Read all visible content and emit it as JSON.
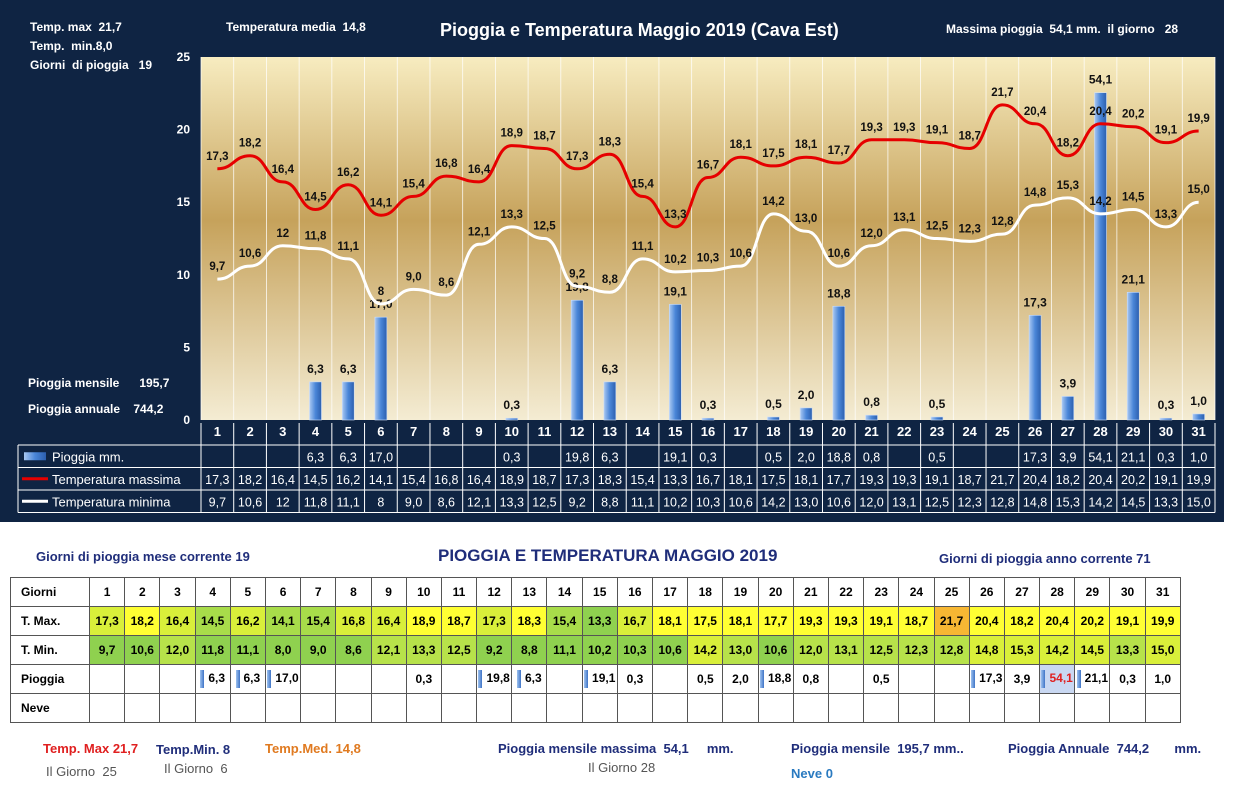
{
  "header": {
    "title": "Pioggia e Temperatura Maggio 2019 (Cava Est)",
    "temp_max_label": "Temp. max  21,7",
    "temp_min_label": "Temp.  min.8,0",
    "rain_days_label": "Giorni  di pioggia   19",
    "temp_media_label": "Temperatura media  14,8",
    "max_rain_label": "Massima pioggia  54,1 mm.  il giorno   28",
    "monthly_rain_label": "Pioggia mensile      195,7",
    "annual_rain_label": "Pioggia annuale    744,2"
  },
  "legend": {
    "rain": "Pioggia mm.",
    "tmax": "Temperatura massima",
    "tmin": "Temperatura minima"
  },
  "colors": {
    "panel": "#0f2443",
    "tmax_line": "#e60000",
    "tmin_line": "#ffffff",
    "bar": "#4a86d8"
  },
  "chart_data": {
    "type": "bar+line",
    "categories": [
      "1",
      "2",
      "3",
      "4",
      "5",
      "6",
      "7",
      "8",
      "9",
      "10",
      "11",
      "12",
      "13",
      "14",
      "15",
      "16",
      "17",
      "18",
      "19",
      "20",
      "21",
      "22",
      "23",
      "24",
      "25",
      "26",
      "27",
      "28",
      "29",
      "30",
      "31"
    ],
    "left_axis": {
      "ticks": [
        "0",
        "5",
        "10",
        "15",
        "20",
        "25"
      ],
      "ylim": [
        0,
        25
      ]
    },
    "right_axis": {
      "ticks": [
        "0",
        "10",
        "20",
        "30",
        "40",
        "50",
        "60"
      ],
      "ylim": [
        0,
        60
      ]
    },
    "series": [
      {
        "name": "Pioggia mm.",
        "kind": "bar",
        "axis": "right",
        "values": [
          null,
          null,
          null,
          6.3,
          6.3,
          17.0,
          null,
          null,
          null,
          0.3,
          null,
          19.8,
          6.3,
          null,
          19.1,
          0.3,
          null,
          0.5,
          2.0,
          18.8,
          0.8,
          null,
          0.5,
          null,
          null,
          17.3,
          3.9,
          54.1,
          21.1,
          0.3,
          1.0
        ],
        "labels": [
          "",
          "",
          "",
          "6,3",
          "6,3",
          "17,0",
          "",
          "",
          "",
          "0,3",
          "",
          "19,8",
          "6,3",
          "",
          "19,1",
          "0,3",
          "",
          "0,5",
          "2,0",
          "18,8",
          "0,8",
          "",
          "0,5",
          "",
          "",
          "17,3",
          "3,9",
          "54,1",
          "21,1",
          "0,3",
          "1,0"
        ]
      },
      {
        "name": "Temperatura massima",
        "kind": "line",
        "axis": "left",
        "values": [
          17.3,
          18.2,
          16.4,
          14.5,
          16.2,
          14.1,
          15.4,
          16.8,
          16.4,
          18.9,
          18.7,
          17.3,
          18.3,
          15.4,
          13.3,
          16.7,
          18.1,
          17.5,
          18.1,
          17.7,
          19.3,
          19.3,
          19.1,
          18.7,
          21.7,
          20.4,
          18.2,
          20.4,
          20.2,
          19.1,
          19.9
        ],
        "labels": [
          "17,3",
          "18,2",
          "16,4",
          "14,5",
          "16,2",
          "14,1",
          "15,4",
          "16,8",
          "16,4",
          "18,9",
          "18,7",
          "17,3",
          "18,3",
          "15,4",
          "13,3",
          "16,7",
          "18,1",
          "17,5",
          "18,1",
          "17,7",
          "19,3",
          "19,3",
          "19,1",
          "18,7",
          "21,7",
          "20,4",
          "18,2",
          "20,4",
          "20,2",
          "19,1",
          "19,9"
        ]
      },
      {
        "name": "Temperatura minima",
        "kind": "line",
        "axis": "left",
        "values": [
          9.7,
          10.6,
          12,
          11.8,
          11.1,
          8,
          9.0,
          8.6,
          12.1,
          13.3,
          12.5,
          9.2,
          8.8,
          11.1,
          10.2,
          10.3,
          10.6,
          14.2,
          13.0,
          10.6,
          12.0,
          13.1,
          12.5,
          12.3,
          12.8,
          14.8,
          15.3,
          14.2,
          14.5,
          13.3,
          15.0
        ],
        "labels": [
          "9,7",
          "10,6",
          "12",
          "11,8",
          "11,1",
          "8",
          "9,0",
          "8,6",
          "12,1",
          "13,3",
          "12,5",
          "9,2",
          "8,8",
          "11,1",
          "10,2",
          "10,3",
          "10,6",
          "14,2",
          "13,0",
          "10,6",
          "12,0",
          "13,1",
          "12,5",
          "12,3",
          "12,8",
          "14,8",
          "15,3",
          "14,2",
          "14,5",
          "13,3",
          "15,0"
        ]
      }
    ]
  },
  "table": {
    "title": "PIOGGIA E TEMPERATURA MAGGIO 2019",
    "rain_days_month": "Giorni di pioggia mese corrente    19",
    "rain_days_year": "Giorni di pioggia anno corrente  71",
    "row_labels": [
      "Giorni",
      "T. Max.",
      "T. Min.",
      "Pioggia",
      "Neve"
    ],
    "days": [
      "1",
      "2",
      "3",
      "4",
      "5",
      "6",
      "7",
      "8",
      "9",
      "10",
      "11",
      "12",
      "13",
      "14",
      "15",
      "16",
      "17",
      "18",
      "19",
      "20",
      "21",
      "22",
      "23",
      "24",
      "25",
      "26",
      "27",
      "28",
      "29",
      "30",
      "31"
    ],
    "tmax": [
      "17,3",
      "18,2",
      "16,4",
      "14,5",
      "16,2",
      "14,1",
      "15,4",
      "16,8",
      "16,4",
      "18,9",
      "18,7",
      "17,3",
      "18,3",
      "15,4",
      "13,3",
      "16,7",
      "18,1",
      "17,5",
      "18,1",
      "17,7",
      "19,3",
      "19,3",
      "19,1",
      "18,7",
      "21,7",
      "20,4",
      "18,2",
      "20,4",
      "20,2",
      "19,1",
      "19,9"
    ],
    "tmin": [
      "9,7",
      "10,6",
      "12,0",
      "11,8",
      "11,1",
      "8,0",
      "9,0",
      "8,6",
      "12,1",
      "13,3",
      "12,5",
      "9,2",
      "8,8",
      "11,1",
      "10,2",
      "10,3",
      "10,6",
      "14,2",
      "13,0",
      "10,6",
      "12,0",
      "13,1",
      "12,5",
      "12,3",
      "12,8",
      "14,8",
      "15,3",
      "14,2",
      "14,5",
      "13,3",
      "15,0"
    ],
    "rain": [
      "",
      "",
      "",
      "6,3",
      "6,3",
      "17,0",
      "",
      "",
      "",
      "0,3",
      "",
      "19,8",
      "6,3",
      "",
      "19,1",
      "0,3",
      "",
      "0,5",
      "2,0",
      "18,8",
      "0,8",
      "",
      "0,5",
      "",
      "",
      "17,3",
      "3,9",
      "54,1",
      "21,1",
      "0,3",
      "1,0"
    ]
  },
  "summary": {
    "temp_max": "Temp. Max 21,7",
    "temp_max_day": "Il Giorno  25",
    "temp_min": "Temp.Min. 8",
    "temp_min_day": "Il Giorno  6",
    "temp_med": "Temp.Med. 14,8",
    "max_monthly_rain": "Pioggia mensile massima  54,1     mm.",
    "max_monthly_rain_day": "Il Giorno 28",
    "monthly_rain": "Pioggia mensile  195,7 mm..",
    "annual_rain": "Pioggia Annuale  744,2       mm.",
    "snow": "Neve 0"
  }
}
